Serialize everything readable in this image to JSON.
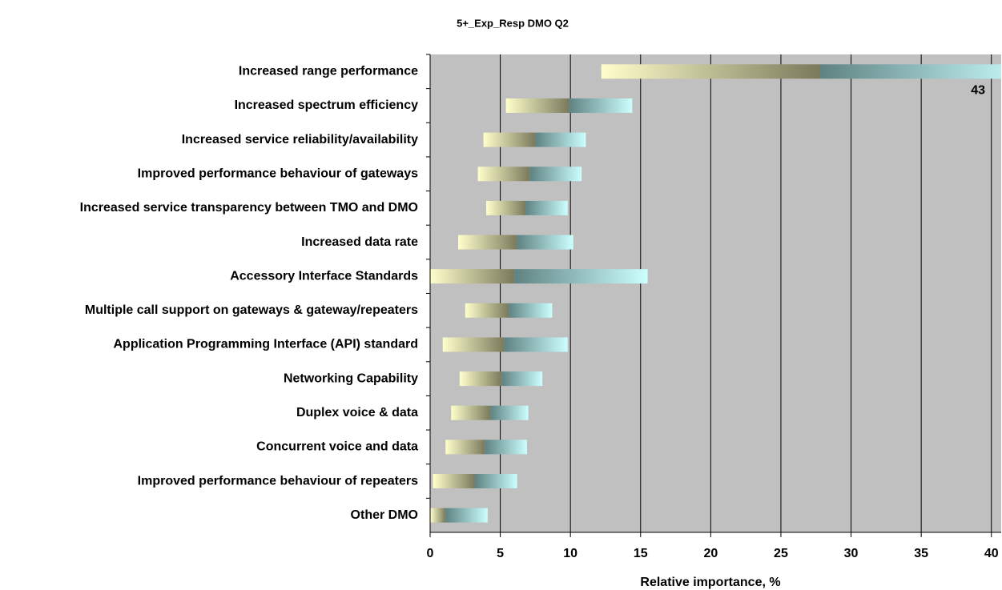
{
  "chart_data": {
    "type": "floating_bar",
    "title": "5+_Exp_Resp DMO Q2",
    "x_label": "Relative importance, %",
    "categories": [
      "Increased range performance",
      "Increased spectrum efficiency",
      "Increased service reliability/availability",
      "Improved performance behaviour of gateways",
      "Increased service transparency between TMO and DMO",
      "Increased data rate",
      "Accessory Interface Standards",
      "Multiple call support on gateways & gateway/repeaters",
      "Application Programming Interface (API) standard",
      "Networking Capability",
      "Duplex voice & data",
      "Concurrent voice and data",
      "Improved performance behaviour of repeaters",
      "Other DMO"
    ],
    "low": [
      12.2,
      5.4,
      3.8,
      3.4,
      4.0,
      2.0,
      0,
      2.5,
      0.9,
      2.1,
      1.5,
      1.1,
      0.2,
      0
    ],
    "mid": [
      27.8,
      9.9,
      7.5,
      7.1,
      6.8,
      6.2,
      6.0,
      5.6,
      5.3,
      5.1,
      4.3,
      3.9,
      3.2,
      1.1
    ],
    "high": [
      43,
      14.4,
      11.1,
      10.8,
      9.8,
      10.2,
      15.5,
      8.7,
      9.8,
      8.0,
      7.0,
      6.9,
      6.2,
      4.1
    ],
    "xlim": [
      0,
      40.7
    ],
    "xticks": [
      0,
      5,
      10,
      15,
      20,
      25,
      30,
      35,
      40
    ],
    "grid": true,
    "plot_background": "#c0c0c0",
    "colors": [
      "#ffffcc",
      "#7a7a5c",
      "#5f8282",
      "#ccffff"
    ]
  }
}
